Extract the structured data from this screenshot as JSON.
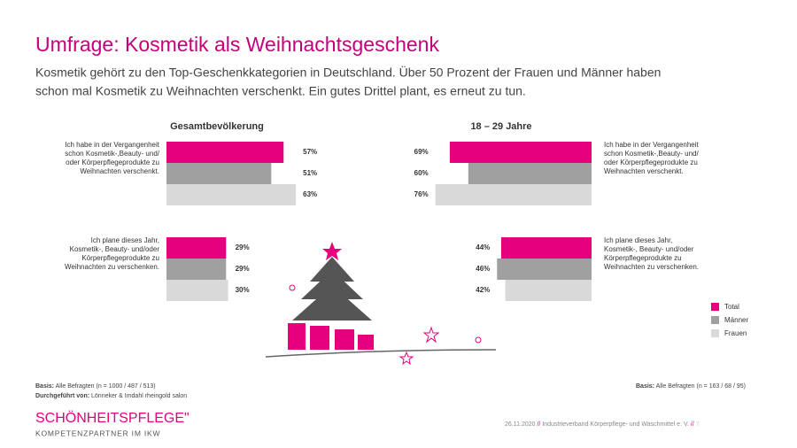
{
  "title": "Umfrage: Kosmetik als Weihnachtsgeschenk",
  "subtitle": [
    "Kosmetik gehört zu den Top-Geschenkkategorien in Deutschland. Über 50 Prozent der Frauen und Männer haben",
    "schon mal Kosmetik zu Weihnachten verschenkt. Ein gutes Drittel plant, es erneut zu tun."
  ],
  "footer": {
    "basis_left_label": "Basis:",
    "basis_left": "Alle Befragten (n = 1000 / 487 / 513)",
    "conducted_label": "Durchgeführt von:",
    "conducted": "Lönneker & Imdahl rheingold salon",
    "basis_right_label": "Basis:",
    "basis_right": "Alle Befragten (n = 163 / 68 / 95)",
    "logo": "SCHÖNHEITSPFLEGE\"",
    "logo_sub": "KOMPETENZPARTNER IM IKW",
    "date": "26.11.2020",
    "sep1": "//",
    "org": "Industrieverband Körperpflege- und Waschmittel e. V.",
    "sep2": "//",
    "page": "7"
  },
  "chart_data": [
    {
      "type": "bar",
      "title": "Gesamtbevölkerung",
      "categories": [
        [
          "Ich habe in der Vergangenheit",
          "schon Kosmetik-,Beauty- und/",
          "oder Körperpflegeprodukte zu",
          "Weihnachten verschenkt."
        ],
        [
          "Ich plane dieses Jahr,",
          "Kosmetik-, Beauty- und/oder",
          "Körperpflegeprodukte zu",
          "Weihnachten zu verschenken."
        ]
      ],
      "series": [
        {
          "name": "Total",
          "color": "#e6007e",
          "values": [
            57,
            29
          ],
          "value_labels": [
            "57%",
            "29%"
          ]
        },
        {
          "name": "Männer",
          "color": "#a0a0a0",
          "values": [
            51,
            29
          ],
          "value_labels": [
            "51%",
            "29%"
          ]
        },
        {
          "name": "Frauen",
          "color": "#d9d9d9",
          "values": [
            63,
            30
          ],
          "value_labels": [
            "63%",
            "30%"
          ]
        }
      ]
    },
    {
      "type": "bar",
      "title": "18 – 29 Jahre",
      "categories": [
        [
          "Ich habe in der Vergangenheit",
          "schon Kosmetik-,Beauty- und/",
          "oder Körperpflegeprodukte zu",
          "Weihnachten verschenkt."
        ],
        [
          "Ich plane dieses Jahr,",
          "Kosmetik-, Beauty- und/oder",
          "Körperpflegeprodukte zu",
          "Weihnachten zu verschenken."
        ]
      ],
      "series": [
        {
          "color": "#e6007e",
          "values": [
            69,
            44
          ],
          "value_labels": [
            "69%",
            "44%"
          ]
        },
        {
          "color": "#a0a0a0",
          "values": [
            60,
            46
          ],
          "value_labels": [
            "60%",
            "46%"
          ]
        },
        {
          "color": "#d9d9d9",
          "values": [
            76,
            42
          ],
          "value_labels": [
            "76%",
            "42%"
          ]
        }
      ]
    }
  ]
}
